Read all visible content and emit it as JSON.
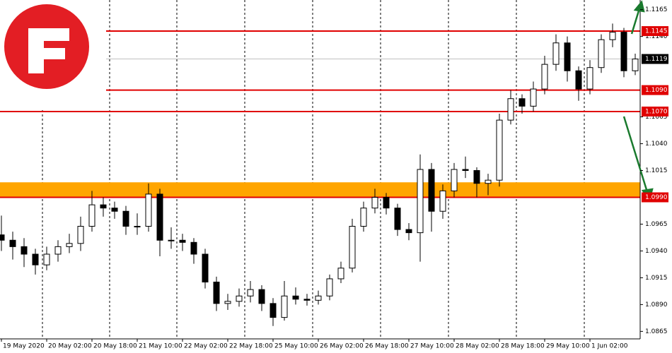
{
  "chart_data": {
    "type": "candlestick",
    "categories": [
      "19 May 2020",
      null,
      null,
      null,
      "20 May 02:00",
      null,
      null,
      null,
      "20 May 18:00",
      null,
      null,
      null,
      "21 May 10:00",
      null,
      null,
      null,
      "22 May 02:00",
      null,
      null,
      null,
      "22 May 18:00",
      null,
      null,
      null,
      "25 May 10:00",
      null,
      null,
      null,
      "26 May 02:00",
      null,
      null,
      null,
      "26 May 18:00",
      null,
      null,
      null,
      "27 May 10:00",
      null,
      null,
      null,
      "28 May 02:00",
      null,
      null,
      null,
      "28 May 18:00",
      null,
      null,
      null,
      "29 May 10:00",
      null,
      null,
      null,
      "1 Jun 02:00",
      null,
      null,
      null,
      null
    ],
    "open": [
      1.0955,
      1.095,
      1.0944,
      1.0937,
      1.0927,
      1.0937,
      1.0944,
      1.0947,
      1.0963,
      1.0983,
      1.098,
      1.0977,
      1.0963,
      1.0963,
      1.0993,
      1.095,
      1.095,
      1.0948,
      1.0937,
      1.0911,
      1.0891,
      1.0893,
      1.0898,
      1.0904,
      1.0891,
      1.0878,
      1.0898,
      1.0895,
      1.0894,
      1.0898,
      1.0914,
      1.0924,
      1.0963,
      1.098,
      1.099,
      1.098,
      1.096,
      1.0957,
      1.1016,
      1.0977,
      1.0996,
      1.1016,
      1.1015,
      1.1003,
      1.1006,
      1.1062,
      1.1082,
      1.1075,
      1.1091,
      1.1114,
      1.1134,
      1.1108,
      1.1091,
      1.1111,
      1.1137,
      1.1144,
      1.1108
    ],
    "high": [
      1.0973,
      1.0958,
      1.0952,
      1.0942,
      1.0944,
      1.095,
      1.0956,
      1.0972,
      1.0996,
      1.099,
      1.0986,
      1.0982,
      1.0975,
      1.1003,
      1.0998,
      1.0962,
      1.0956,
      1.0952,
      1.0942,
      1.0916,
      1.09,
      1.0905,
      1.0912,
      1.0908,
      1.0896,
      1.0912,
      1.0906,
      1.09,
      1.0903,
      1.0918,
      1.093,
      1.097,
      1.0986,
      1.0998,
      1.0994,
      1.0984,
      1.0966,
      1.103,
      1.1022,
      1.1002,
      1.1022,
      1.1028,
      1.1018,
      1.1012,
      1.1068,
      1.109,
      1.1086,
      1.1098,
      1.1122,
      1.1142,
      1.114,
      1.1112,
      1.1118,
      1.1142,
      1.1152,
      1.1148,
      1.1124
    ],
    "low": [
      1.094,
      1.0932,
      1.0925,
      1.0918,
      1.0922,
      1.093,
      1.0938,
      1.094,
      1.0958,
      1.0972,
      1.097,
      1.0955,
      1.0955,
      1.0958,
      1.0935,
      1.0942,
      1.094,
      1.0928,
      1.0905,
      1.0884,
      1.0885,
      1.0888,
      1.0892,
      1.0884,
      1.087,
      1.0875,
      1.089,
      1.0889,
      1.089,
      1.0894,
      1.091,
      1.092,
      1.0958,
      1.0975,
      1.0974,
      1.0954,
      1.095,
      1.093,
      1.0958,
      1.097,
      1.099,
      1.1008,
      1.099,
      1.0992,
      1.1,
      1.1058,
      1.1068,
      1.107,
      1.1086,
      1.1108,
      1.1098,
      1.108,
      1.1086,
      1.1106,
      1.113,
      1.1102,
      1.1104
    ],
    "close": [
      1.095,
      1.0944,
      1.0937,
      1.0927,
      1.0937,
      1.0944,
      1.0947,
      1.0963,
      1.0983,
      1.098,
      1.0977,
      1.0963,
      1.0963,
      1.0993,
      1.095,
      1.095,
      1.0948,
      1.0937,
      1.0911,
      1.0891,
      1.0893,
      1.0898,
      1.0904,
      1.0891,
      1.0878,
      1.0898,
      1.0895,
      1.0894,
      1.0898,
      1.0914,
      1.0924,
      1.0963,
      1.098,
      1.099,
      1.098,
      1.096,
      1.0957,
      1.1016,
      1.0977,
      1.0996,
      1.1016,
      1.1015,
      1.1003,
      1.1006,
      1.1062,
      1.1082,
      1.1075,
      1.1091,
      1.1114,
      1.1134,
      1.1108,
      1.1091,
      1.1111,
      1.1137,
      1.1144,
      1.1108,
      1.1119
    ],
    "up_color": "#ffffff",
    "down_color": "#000000",
    "ylim": [
      1.0858,
      1.1174
    ],
    "yticks": [
      1.1165,
      {
        "value": 1.114,
        "label": "1.1140"
      },
      1.1065,
      {
        "value": 1.104,
        "label": "1.1040"
      },
      1.1015,
      1.0965,
      {
        "value": 1.094,
        "label": "1.0940"
      },
      1.0915,
      {
        "value": 1.089,
        "label": "1.0890"
      },
      1.0865
    ],
    "levels": [
      {
        "value": 1.1145,
        "label": "1.1145",
        "color": "#e00000"
      },
      {
        "value": 1.109,
        "label": "1.1090",
        "color": "#e00000"
      },
      {
        "value": 1.107,
        "label": "1.1070",
        "color": "#e00000"
      },
      {
        "value": 1.099,
        "label": "1.0990",
        "color": "#e00000"
      }
    ],
    "zone": [
      1.099,
      1.1004
    ],
    "zone_color": "#ffa500",
    "current": {
      "value": 1.1119,
      "label": "1.1119"
    }
  }
}
